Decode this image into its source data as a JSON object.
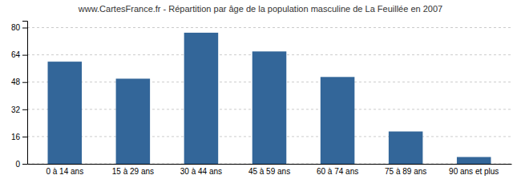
{
  "chart_data": {
    "type": "bar",
    "title": "www.CartesFrance.fr - Répartition par âge de la population masculine de La Feuillée en 2007",
    "categories": [
      "0 à 14 ans",
      "15 à 29 ans",
      "30 à 44 ans",
      "45 à 59 ans",
      "60 à 74 ans",
      "75 à 89 ans",
      "90 ans et plus"
    ],
    "values": [
      60,
      50,
      77,
      66,
      51,
      19,
      4
    ],
    "color": "#336699",
    "ylim": [
      0,
      84
    ],
    "yticks": [
      0,
      16,
      32,
      48,
      64,
      80
    ],
    "grid": true
  }
}
